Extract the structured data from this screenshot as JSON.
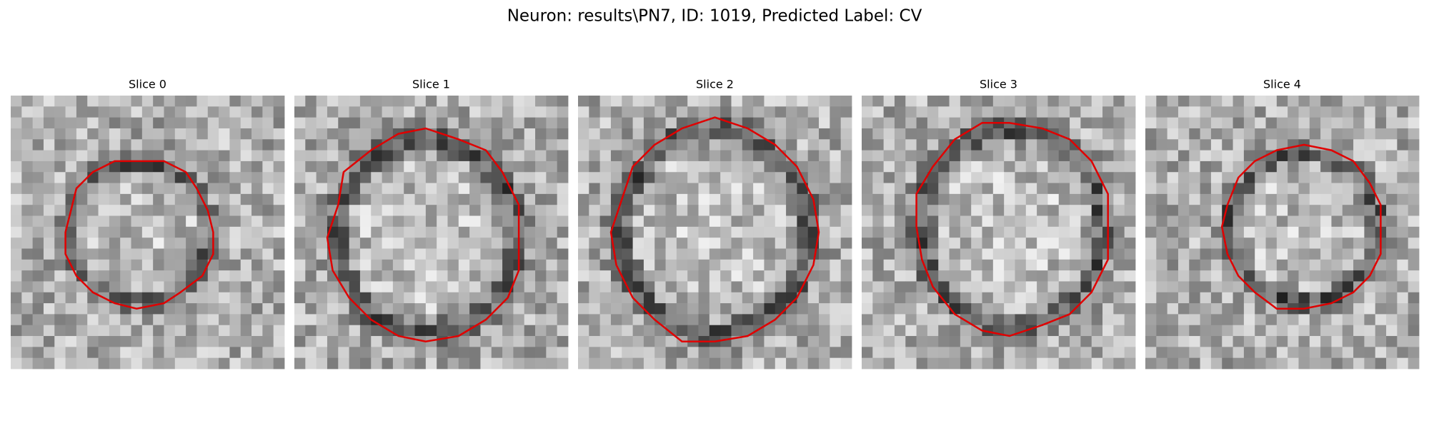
{
  "title": "Neuron: results\\PN7, ID: 1019, Predicted Label: CV",
  "panels": [
    {
      "title": "Slice 0"
    },
    {
      "title": "Slice 1"
    },
    {
      "title": "Slice 2"
    },
    {
      "title": "Slice 3"
    },
    {
      "title": "Slice 4"
    }
  ]
}
